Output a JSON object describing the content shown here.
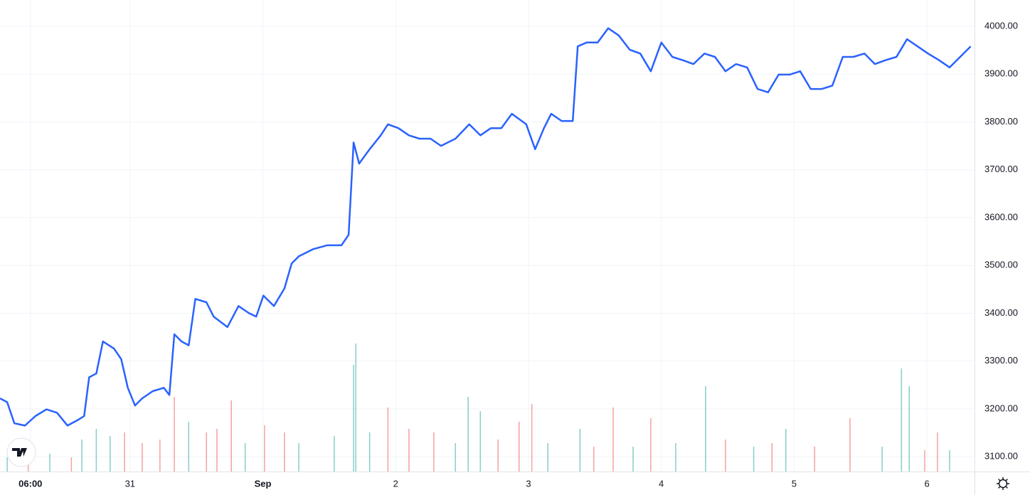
{
  "chart_data": {
    "type": "line",
    "color": "#2962ff",
    "grid": true,
    "x": [
      0.5,
      1.8,
      3.1,
      5.0,
      6.9,
      8.9,
      10.8,
      12.7,
      14.6,
      15.7,
      16.6,
      17.9,
      19.1,
      21.1,
      22.4,
      23.6,
      24.9,
      26.2,
      28.1,
      30.1,
      31.1,
      32.0,
      33.3,
      34.6,
      35.8,
      37.8,
      39.1,
      41.6,
      43.6,
      45.5,
      46.8,
      48.1,
      50.0,
      51.9,
      53.2,
      54.5,
      57.1,
      59.6,
      62.2,
      63.5,
      64.4,
      65.4,
      67.3,
      69.3,
      70.6,
      72.5,
      74.4,
      76.3,
      78.3,
      80.2,
      82.8,
      85.3,
      87.3,
      89.2,
      91.1,
      93.0,
      95.6,
      97.2,
      98.8,
      100.1,
      102.0,
      104.0,
      104.9,
      106.5,
      108.5,
      110.4,
      112.3,
      114.3,
      116.2,
      118.1,
      120.0,
      122.0,
      123.9,
      125.8,
      127.8,
      129.7,
      131.6,
      133.5,
      135.5,
      137.4,
      139.3,
      141.2,
      143.2,
      145.1,
      147.0,
      149.0,
      150.9,
      152.8,
      154.7,
      156.7,
      158.6,
      160.5,
      162.5,
      164.4,
      166.3,
      168.2,
      170.2,
      172.1,
      174.0,
      175.9
    ],
    "values": [
      3222,
      3214,
      3170,
      3165,
      3185,
      3199,
      3192,
      3165,
      3177,
      3185,
      3266,
      3274,
      3341,
      3326,
      3304,
      3244,
      3207,
      3222,
      3237,
      3244,
      3229,
      3356,
      3341,
      3333,
      3430,
      3423,
      3393,
      3371,
      3415,
      3400,
      3393,
      3437,
      3415,
      3452,
      3504,
      3519,
      3534,
      3542,
      3542,
      3564,
      3757,
      3713,
      3743,
      3772,
      3795,
      3787,
      3772,
      3765,
      3765,
      3750,
      3765,
      3795,
      3772,
      3787,
      3787,
      3817,
      3795,
      3743,
      3787,
      3817,
      3802,
      3802,
      3958,
      3966,
      3966,
      3996,
      3981,
      3951,
      3943,
      3906,
      3966,
      3936,
      3929,
      3921,
      3943,
      3936,
      3906,
      3921,
      3914,
      3869,
      3862,
      3899,
      3899,
      3906,
      3869,
      3869,
      3876,
      3936,
      3936,
      3943,
      3921,
      3929,
      3936,
      3973,
      3958,
      3943,
      3929,
      3914,
      3936,
      3958
    ],
    "xlim": [
      0.5,
      176.6
    ],
    "ylim": [
      3069,
      4055
    ],
    "yticks": [
      {
        "value": 3100,
        "label": "3100.00"
      },
      {
        "value": 3200,
        "label": "3200.00"
      },
      {
        "value": 3300,
        "label": "3300.00"
      },
      {
        "value": 3400,
        "label": "3400.00"
      },
      {
        "value": 3500,
        "label": "3500.00"
      },
      {
        "value": 3600,
        "label": "3600.00"
      },
      {
        "value": 3700,
        "label": "3700.00"
      },
      {
        "value": 3800,
        "label": "3800.00"
      },
      {
        "value": 3900,
        "label": "3900.00"
      },
      {
        "value": 4000,
        "label": "4000.00"
      }
    ],
    "xticks": [
      {
        "value": 6,
        "label": "06:00"
      },
      {
        "value": 24,
        "label": "31"
      },
      {
        "value": 48,
        "label": "Sep"
      },
      {
        "value": 72,
        "label": "2"
      },
      {
        "value": 96,
        "label": "3"
      },
      {
        "value": 120,
        "label": "4"
      },
      {
        "value": 144,
        "label": "5"
      },
      {
        "value": 168,
        "label": "6"
      }
    ],
    "volume": {
      "vlim": [
        0,
        663
      ],
      "x": [
        1.8,
        5.6,
        9.5,
        13.4,
        15.3,
        17.9,
        20.4,
        23.0,
        26.2,
        29.4,
        32.0,
        34.6,
        37.8,
        39.7,
        42.3,
        44.8,
        48.3,
        51.9,
        54.5,
        60.9,
        64.4,
        64.8,
        67.3,
        70.6,
        74.4,
        78.9,
        82.8,
        85.1,
        87.3,
        90.5,
        94.3,
        96.6,
        99.5,
        105.3,
        107.8,
        111.3,
        114.9,
        118.1,
        122.6,
        128.0,
        131.6,
        136.7,
        140.0,
        142.5,
        147.7,
        154.1,
        159.9,
        163.4,
        164.8,
        167.6,
        169.9,
        172.1
      ],
      "values": [
        20,
        15,
        25,
        20,
        45,
        60,
        50,
        55,
        40,
        45,
        105,
        70,
        55,
        60,
        100,
        40,
        65,
        55,
        40,
        50,
        150,
        180,
        55,
        90,
        60,
        55,
        40,
        105,
        85,
        45,
        70,
        95,
        40,
        60,
        35,
        90,
        35,
        75,
        40,
        120,
        45,
        35,
        40,
        60,
        35,
        75,
        35,
        145,
        120,
        30,
        55,
        30
      ],
      "colors": [
        "#26a69a",
        "#ef5350",
        "#26a69a",
        "#ef5350",
        "#26a69a",
        "#26a69a",
        "#26a69a",
        "#ef5350",
        "#ef5350",
        "#ef5350",
        "#ef5350",
        "#26a69a",
        "#ef5350",
        "#ef5350",
        "#ef5350",
        "#26a69a",
        "#ef5350",
        "#ef5350",
        "#26a69a",
        "#26a69a",
        "#26a69a",
        "#26a69a",
        "#26a69a",
        "#ef5350",
        "#ef5350",
        "#ef5350",
        "#26a69a",
        "#26a69a",
        "#26a69a",
        "#ef5350",
        "#ef5350",
        "#ef5350",
        "#26a69a",
        "#26a69a",
        "#ef5350",
        "#ef5350",
        "#26a69a",
        "#ef5350",
        "#26a69a",
        "#26a69a",
        "#ef5350",
        "#26a69a",
        "#ef5350",
        "#26a69a",
        "#ef5350",
        "#ef5350",
        "#26a69a",
        "#26a69a",
        "#26a69a",
        "#ef5350",
        "#ef5350",
        "#26a69a"
      ]
    }
  }
}
